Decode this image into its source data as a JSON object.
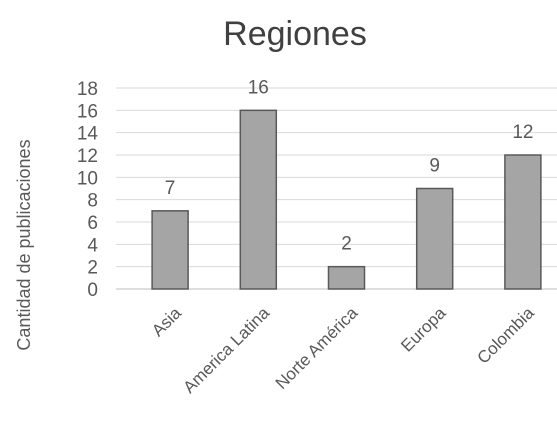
{
  "chart_data": {
    "type": "bar",
    "title": "Regiones",
    "xlabel": "",
    "ylabel": "Cantidad de publicaciones",
    "categories": [
      "Asia",
      "America Latina",
      "Norte América",
      "Europa",
      "Colombia"
    ],
    "values": [
      7,
      16,
      2,
      9,
      12
    ],
    "ylim": [
      0,
      18
    ],
    "yticks": [
      "0",
      "2",
      "4",
      "6",
      "8",
      "10",
      "12",
      "14",
      "16",
      "18"
    ],
    "grid": true,
    "legend": "none",
    "data_labels": true,
    "colors": {
      "bar_fill": "#a5a5a5",
      "bar_stroke": "#595959"
    }
  }
}
